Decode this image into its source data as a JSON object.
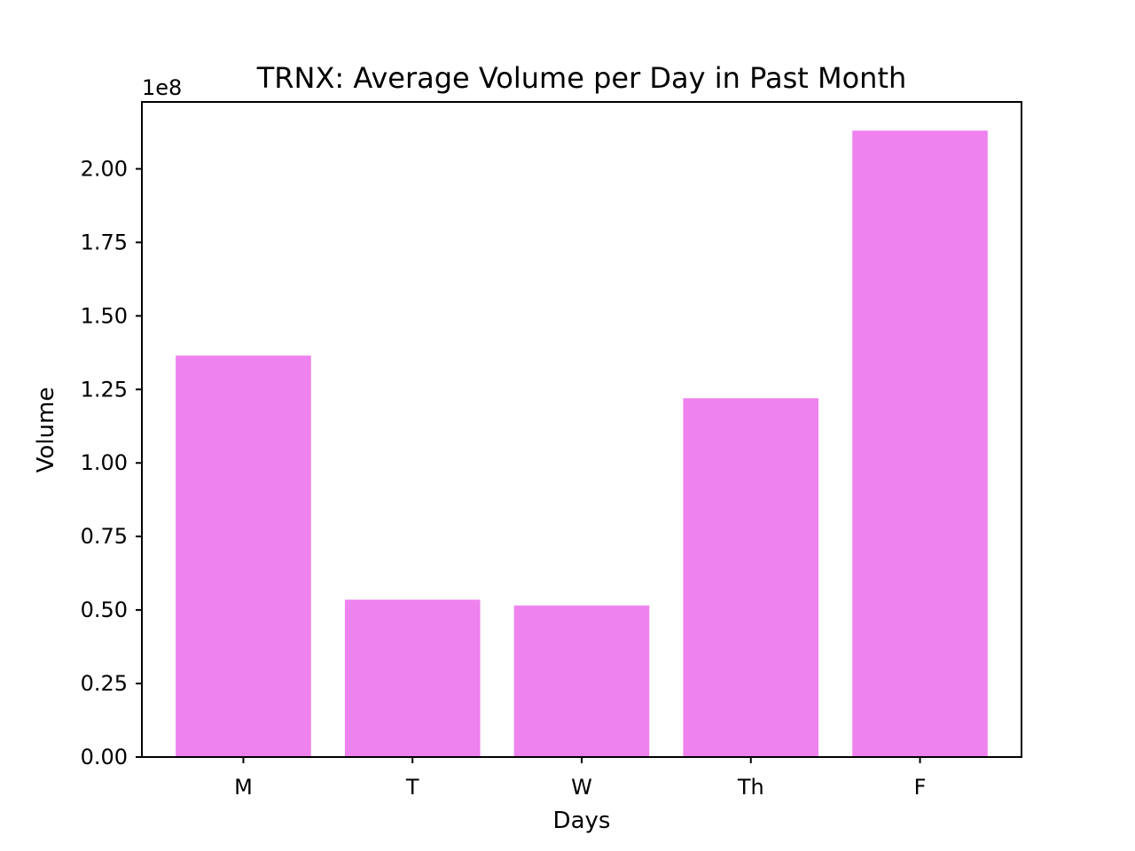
{
  "chart_data": {
    "type": "bar",
    "title": "TRNX: Average Volume per Day in Past Month",
    "xlabel": "Days",
    "ylabel": "Volume",
    "y_offset_label": "1e8",
    "y_scale": 100000000,
    "categories": [
      "M",
      "T",
      "W",
      "Th",
      "F"
    ],
    "values": [
      136500000,
      53500000,
      51500000,
      122000000,
      213000000
    ],
    "ylim": [
      0,
      222750000
    ],
    "yticks": [
      0,
      25000000,
      50000000,
      75000000,
      100000000,
      125000000,
      150000000,
      175000000,
      200000000
    ],
    "ytick_labels": [
      "0.00",
      "0.25",
      "0.50",
      "0.75",
      "1.00",
      "1.25",
      "1.50",
      "1.75",
      "2.00"
    ],
    "bar_color": "#ee82ee",
    "grid": false,
    "legend": "none"
  }
}
